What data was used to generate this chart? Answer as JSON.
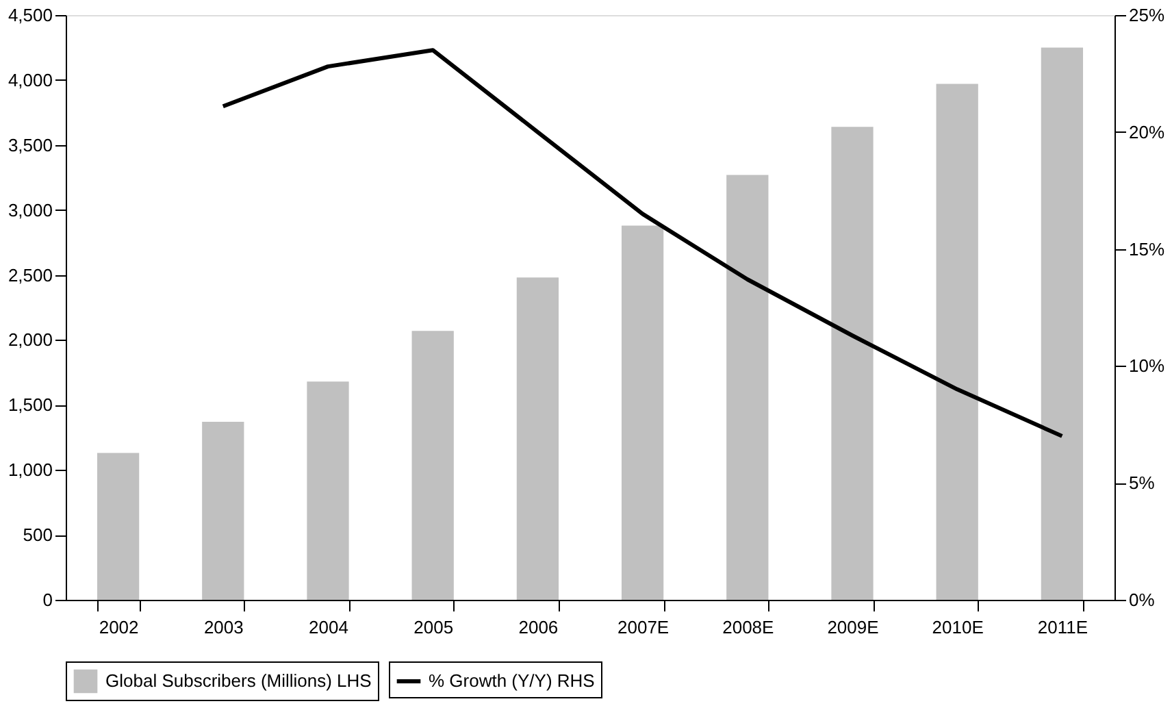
{
  "chart_data": {
    "type": "bar",
    "categories": [
      "2002",
      "2003",
      "2004",
      "2005",
      "2006",
      "2007E",
      "2008E",
      "2009E",
      "2010E",
      "2011E"
    ],
    "series": [
      {
        "name": "Global Subscribers (Millions) LHS",
        "color": "#c0c0c0",
        "values": [
          1130,
          1370,
          1680,
          2070,
          2480,
          2880,
          3270,
          3640,
          3970,
          4250
        ]
      },
      {
        "name": "% Growth (Y/Y) RHS",
        "type": "line",
        "axis": "y2",
        "color": "#000000",
        "values": [
          null,
          21.1,
          22.8,
          23.5,
          20.0,
          16.5,
          13.7,
          11.3,
          9.0,
          7.0
        ]
      }
    ],
    "ylim": [
      0,
      4500
    ],
    "yticks": [
      0,
      500,
      {
        "value": 1000,
        "label": "1,000"
      },
      {
        "value": 1500,
        "label": "1,500"
      },
      {
        "value": 2000,
        "label": "2,000"
      },
      {
        "value": 2500,
        "label": "2,500"
      },
      {
        "value": 3000,
        "label": "3,000"
      },
      {
        "value": 3500,
        "label": "3,500"
      },
      {
        "value": 4000,
        "label": "4,000"
      },
      {
        "value": 4500,
        "label": "4,500"
      }
    ],
    "y2lim": [
      0,
      25
    ],
    "y2ticks": [
      {
        "value": 0,
        "label": "0%"
      },
      {
        "value": 5,
        "label": "5%"
      },
      {
        "value": 10,
        "label": "10%"
      },
      {
        "value": 15,
        "label": "15%"
      },
      {
        "value": 20,
        "label": "20%"
      },
      {
        "value": 25,
        "label": "25%"
      }
    ],
    "grid": false,
    "legend": "bottom",
    "line_style": "solid",
    "marker": "none"
  }
}
